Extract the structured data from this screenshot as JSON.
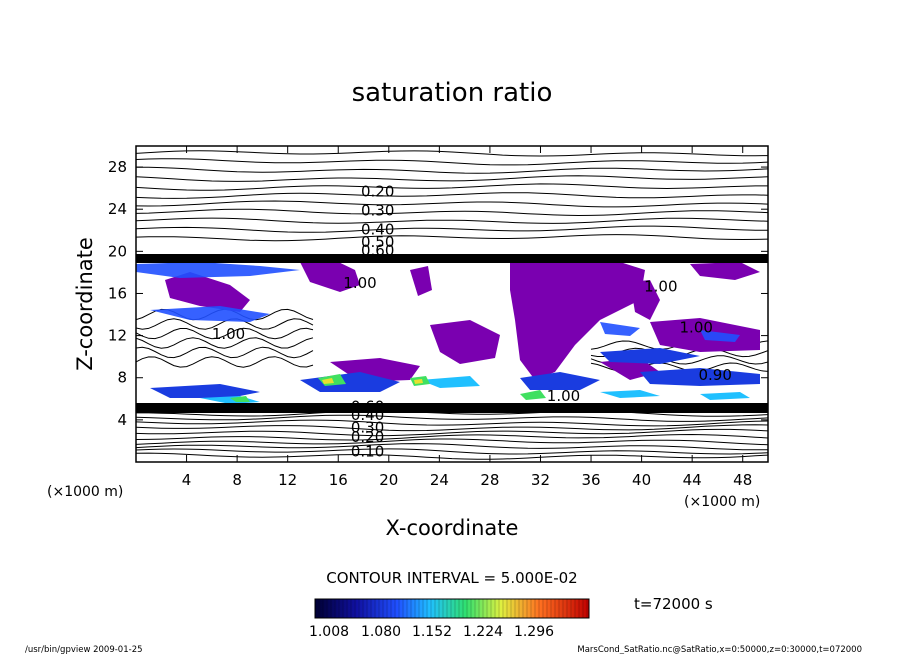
{
  "chart_data": {
    "type": "contour",
    "title": "saturation ratio",
    "xlabel": "X-coordinate",
    "ylabel": "Z-coordinate",
    "x_unit": "(×1000 m)",
    "y_unit": "(×1000 m)",
    "xlim": [
      0,
      50
    ],
    "ylim": [
      0,
      30
    ],
    "x_ticks": [
      4,
      8,
      12,
      16,
      20,
      24,
      28,
      32,
      36,
      40,
      44,
      48
    ],
    "y_ticks": [
      4,
      8,
      12,
      16,
      20,
      24,
      28
    ],
    "contour_interval_text": "CONTOUR INTERVAL = 5.000E-02",
    "time_text": "t=72000 s",
    "contour_labels": [
      {
        "text": "0.20",
        "x": 17.8,
        "z": 25.2
      },
      {
        "text": "0.30",
        "x": 17.8,
        "z": 23.4
      },
      {
        "text": "0.40",
        "x": 17.8,
        "z": 21.6
      },
      {
        "text": "0.50",
        "x": 17.8,
        "z": 20.4
      },
      {
        "text": "0.60",
        "x": 17.8,
        "z": 19.6
      },
      {
        "text": "1.00",
        "x": 16.4,
        "z": 16.5
      },
      {
        "text": "1.00",
        "x": 6.0,
        "z": 11.7
      },
      {
        "text": "1.00",
        "x": 43.0,
        "z": 12.3
      },
      {
        "text": "1.00",
        "x": 40.2,
        "z": 16.2
      },
      {
        "text": "0.90",
        "x": 44.5,
        "z": 7.8
      },
      {
        "text": "1.00",
        "x": 32.5,
        "z": 5.8
      },
      {
        "text": "0.60",
        "x": 17.0,
        "z": 4.8
      },
      {
        "text": "0.40",
        "x": 17.0,
        "z": 4.0
      },
      {
        "text": "0.30",
        "x": 17.0,
        "z": 2.8
      },
      {
        "text": "0.20",
        "x": 17.0,
        "z": 1.9
      },
      {
        "text": "0.10",
        "x": 17.0,
        "z": 0.5
      }
    ],
    "color_scale": {
      "labels": [
        "1.008",
        "1.080",
        "1.152",
        "1.224",
        "1.296"
      ],
      "colors": [
        "#000033",
        "#1010a0",
        "#2050ff",
        "#20c0ff",
        "#30e070",
        "#e0f040",
        "#ff7020",
        "#c00000"
      ]
    },
    "grid": false
  },
  "footer": {
    "left": "/usr/bin/gpview   2009-01-25",
    "right": "MarsCond_SatRatio.nc@SatRatio,x=0:50000,z=0:30000,t=072000"
  }
}
